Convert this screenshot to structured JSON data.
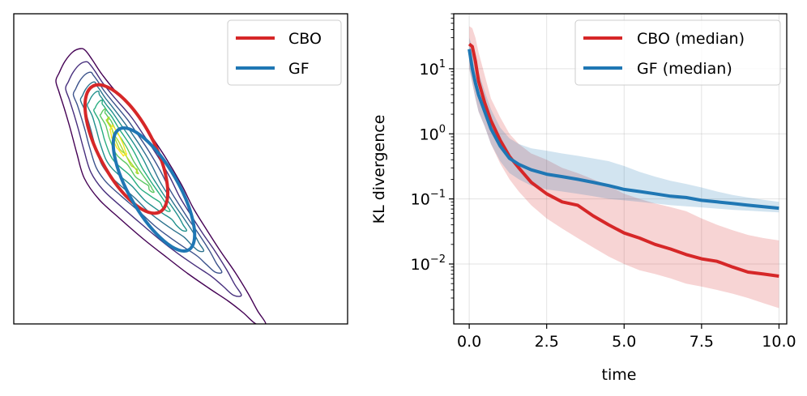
{
  "chart_data": [
    {
      "type": "contour",
      "title": "",
      "xlabel": "",
      "ylabel": "",
      "axes_ticks": "none",
      "contour_levels": 9,
      "contour_colormap": "viridis",
      "legend": {
        "placement": "top-right",
        "entries": [
          {
            "label": "CBO",
            "color": "#d62728"
          },
          {
            "label": "GF",
            "color": "#1f77b4"
          }
        ]
      }
    },
    {
      "type": "line",
      "title": "",
      "xlabel": "time",
      "ylabel": "KL divergence",
      "yscale": "log",
      "xlim": [
        -0.5,
        10.25
      ],
      "ylim": [
        0.0012,
        70
      ],
      "grid": true,
      "xticks": [
        {
          "value": 0,
          "label": "0.0"
        },
        {
          "value": 2.5,
          "label": "2.5"
        },
        {
          "value": 5,
          "label": "5.0"
        },
        {
          "value": 7.5,
          "label": "7.5"
        },
        {
          "value": 10,
          "label": "10.0"
        }
      ],
      "yticks": [
        {
          "value": 10,
          "base": "10",
          "exp": "1"
        },
        {
          "value": 1,
          "base": "10",
          "exp": "0"
        },
        {
          "value": 0.1,
          "base": "10",
          "exp": "−1"
        },
        {
          "value": 0.01,
          "base": "10",
          "exp": "−2"
        }
      ],
      "legend": {
        "placement": "top-right"
      },
      "series": [
        {
          "name": "CBO (median)",
          "color": "#d62728",
          "x": [
            0,
            0.1,
            0.2,
            0.3,
            0.5,
            0.7,
            1.0,
            1.3,
            1.6,
            2.0,
            2.5,
            3.0,
            3.5,
            4.0,
            4.5,
            5.0,
            5.5,
            6.0,
            6.5,
            7.0,
            7.5,
            8.0,
            8.5,
            9.0,
            9.5,
            10.0
          ],
          "y": [
            24,
            22,
            13,
            6.5,
            3.0,
            1.6,
            0.8,
            0.45,
            0.3,
            0.18,
            0.12,
            0.09,
            0.08,
            0.055,
            0.04,
            0.03,
            0.025,
            0.02,
            0.017,
            0.014,
            0.012,
            0.011,
            0.009,
            0.0075,
            0.007,
            0.0065
          ],
          "band_low": [
            10,
            6,
            3.5,
            2.2,
            1.3,
            0.7,
            0.35,
            0.2,
            0.13,
            0.08,
            0.05,
            0.035,
            0.025,
            0.018,
            0.013,
            0.01,
            0.008,
            0.007,
            0.006,
            0.005,
            0.0045,
            0.004,
            0.0035,
            0.003,
            0.0025,
            0.0021
          ],
          "band_high": [
            45,
            42,
            30,
            18,
            8,
            3.5,
            1.8,
            1.0,
            0.7,
            0.5,
            0.4,
            0.3,
            0.25,
            0.2,
            0.16,
            0.12,
            0.1,
            0.085,
            0.075,
            0.065,
            0.05,
            0.04,
            0.033,
            0.028,
            0.025,
            0.023
          ]
        },
        {
          "name": "GF (median)",
          "color": "#1f77b4",
          "x": [
            0,
            0.1,
            0.2,
            0.3,
            0.5,
            0.7,
            1.0,
            1.3,
            1.6,
            2.0,
            2.5,
            3.0,
            3.5,
            4.0,
            4.5,
            5.0,
            5.5,
            6.0,
            6.5,
            7.0,
            7.5,
            8.0,
            8.5,
            9.0,
            9.5,
            10.0
          ],
          "y": [
            20,
            10,
            6,
            4,
            2.2,
            1.2,
            0.65,
            0.42,
            0.34,
            0.28,
            0.24,
            0.22,
            0.2,
            0.18,
            0.16,
            0.14,
            0.13,
            0.12,
            0.11,
            0.105,
            0.095,
            0.09,
            0.085,
            0.08,
            0.076,
            0.072
          ],
          "band_low": [
            10,
            6,
            3.5,
            2.2,
            1.3,
            0.7,
            0.38,
            0.25,
            0.2,
            0.16,
            0.14,
            0.13,
            0.12,
            0.11,
            0.1,
            0.095,
            0.09,
            0.085,
            0.08,
            0.077,
            0.074,
            0.071,
            0.068,
            0.066,
            0.064,
            0.062
          ],
          "band_high": [
            30,
            22,
            15,
            9,
            4.5,
            2.4,
            1.25,
            0.85,
            0.7,
            0.6,
            0.55,
            0.5,
            0.46,
            0.42,
            0.38,
            0.32,
            0.26,
            0.22,
            0.19,
            0.17,
            0.15,
            0.13,
            0.115,
            0.105,
            0.097,
            0.09
          ]
        }
      ]
    }
  ]
}
